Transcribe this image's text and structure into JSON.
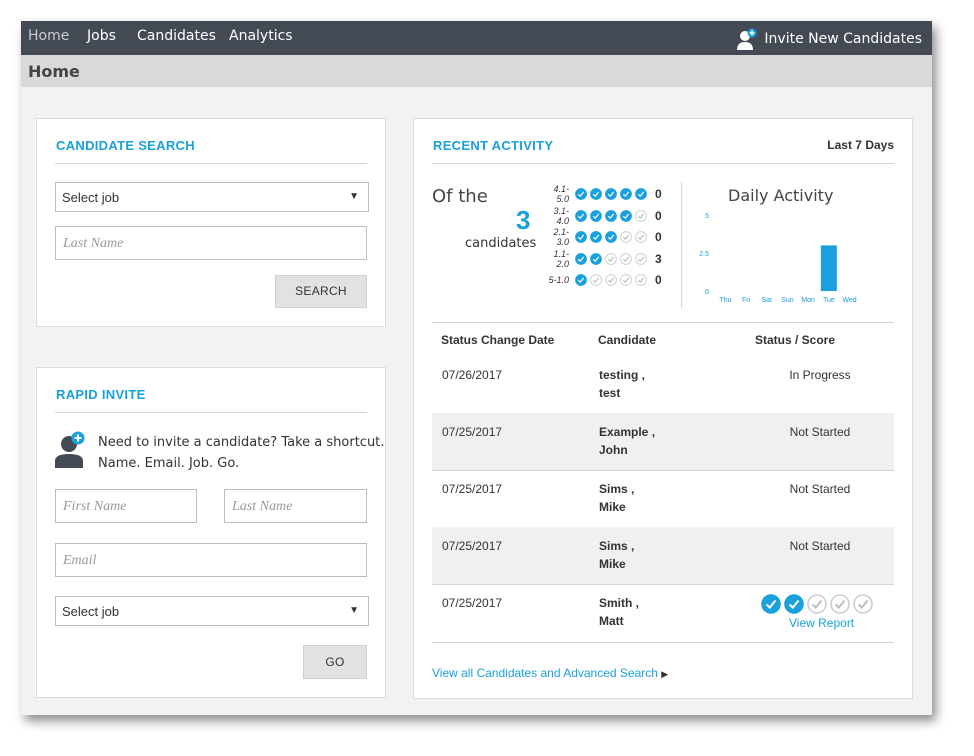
{
  "nav": {
    "items": [
      {
        "label": "Home",
        "active": true
      },
      {
        "label": "Jobs"
      },
      {
        "label": "Candidates"
      },
      {
        "label": "Analytics"
      }
    ],
    "invite_label": "Invite New Candidates",
    "invite_icon": "add-user-icon"
  },
  "page_title": "Home",
  "candidate_search": {
    "title": "CANDIDATE SEARCH",
    "job_select": "Select job",
    "last_name_placeholder": "Last Name",
    "search_button": "SEARCH"
  },
  "rapid_invite": {
    "title": "RAPID INVITE",
    "icon": "add-user-icon",
    "line1": "Need to invite a candidate? Take a shortcut.",
    "line2": "Name. Email. Job. Go.",
    "first_name_placeholder": "First Name",
    "last_name_placeholder": "Last Name",
    "email_placeholder": "Email",
    "job_select": "Select job",
    "go_button": "GO"
  },
  "recent_activity": {
    "title": "RECENT ACTIVITY",
    "period": "Last 7 Days",
    "of_the": "Of the",
    "count": "3",
    "candidates_label": "candidates",
    "score_rows": [
      {
        "range": "4.1-5.0",
        "filled": 5,
        "count": "0"
      },
      {
        "range": "3.1-4.0",
        "filled": 4,
        "count": "0"
      },
      {
        "range": "2.1-3.0",
        "filled": 3,
        "count": "0"
      },
      {
        "range": "1.1-2.0",
        "filled": 2,
        "count": "3"
      },
      {
        "range": "5-1.0",
        "filled": 1,
        "count": "0"
      }
    ],
    "colors": {
      "accent": "#1aa0dc",
      "check_filled": "#1aa0dc",
      "check_empty": "#cfcfcf"
    }
  },
  "chart_data": {
    "type": "bar",
    "title": "Daily Activity",
    "categories": [
      "Thu",
      "Fri",
      "Sat",
      "Sun",
      "Mon",
      "Tue",
      "Wed"
    ],
    "values": [
      0,
      0,
      0,
      0,
      0,
      3,
      0
    ],
    "ylim": [
      0,
      5
    ],
    "yticks": [
      "5",
      "2.5",
      "0"
    ],
    "grid": false,
    "bar_color": "#1aa0dc"
  },
  "table": {
    "headers": [
      "Status Change Date",
      "Candidate",
      "Status / Score"
    ],
    "rows": [
      {
        "date": "07/26/2017",
        "last": "testing ,",
        "first": "test",
        "status": "In Progress"
      },
      {
        "date": "07/25/2017",
        "last": "Example ,",
        "first": "John",
        "status": "Not Started"
      },
      {
        "date": "07/25/2017",
        "last": "Sims ,",
        "first": "Mike",
        "status": "Not Started"
      },
      {
        "date": "07/25/2017",
        "last": "Sims ,",
        "first": "Mike",
        "status": "Not Started"
      },
      {
        "date": "07/25/2017",
        "last": "Smith ,",
        "first": "Matt",
        "status": "",
        "score_filled": 2,
        "score_total": 5,
        "view_report": "View Report"
      }
    ]
  },
  "view_all": "View all Candidates and Advanced Search"
}
